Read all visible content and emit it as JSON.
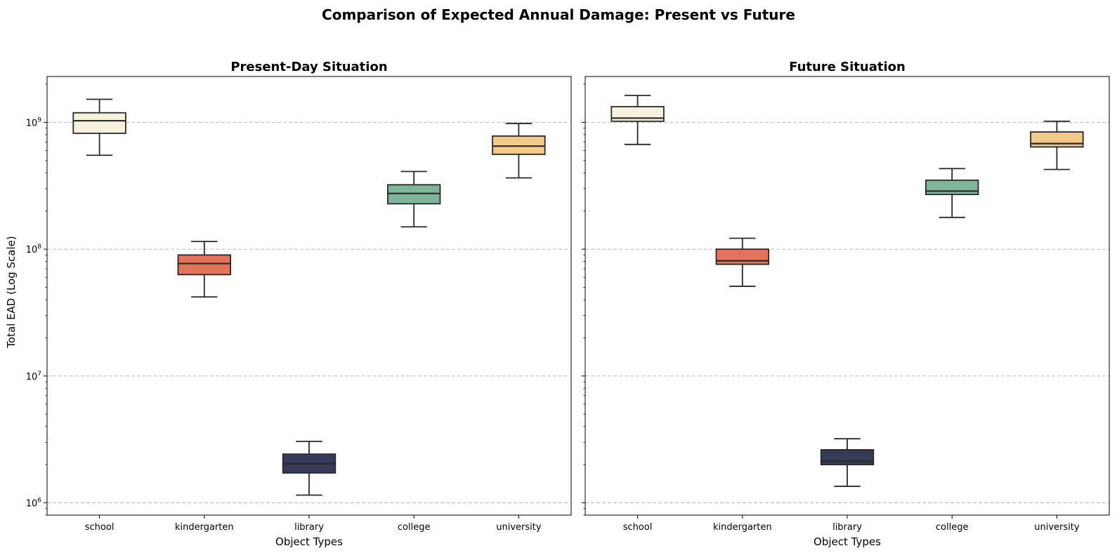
{
  "chart_data": {
    "type": "box",
    "title": "Comparison of Expected Annual Damage: Present vs Future",
    "yscale": "log",
    "ylim": [
      800000,
      2300000000
    ],
    "yticks": [
      1000000,
      10000000,
      100000000,
      1000000000
    ],
    "ytick_labels": [
      {
        "base": "10",
        "exp": "6"
      },
      {
        "base": "10",
        "exp": "7"
      },
      {
        "base": "10",
        "exp": "8"
      },
      {
        "base": "10",
        "exp": "9"
      }
    ],
    "ylabel": "Total EAD (Log Scale)",
    "xlabel": "Object Types",
    "categories": [
      "school",
      "kindergarten",
      "library",
      "college",
      "university"
    ],
    "colors": [
      "#f5f1dc",
      "#e3735a",
      "#363b59",
      "#80b59a",
      "#f2c88b"
    ],
    "grid": "y, dashed",
    "panels": [
      {
        "title": "Present-Day Situation",
        "boxes": [
          {
            "category": "school",
            "whislo": 550000000,
            "q1": 820000000,
            "med": 1030000000,
            "q3": 1190000000,
            "whishi": 1520000000
          },
          {
            "category": "kindergarten",
            "whislo": 42000000,
            "q1": 63000000,
            "med": 77000000,
            "q3": 90000000,
            "whishi": 115000000
          },
          {
            "category": "library",
            "whislo": 1150000,
            "q1": 1720000,
            "med": 2030000,
            "q3": 2420000,
            "whishi": 3050000
          },
          {
            "category": "college",
            "whislo": 150000000,
            "q1": 228000000,
            "med": 275000000,
            "q3": 322000000,
            "whishi": 410000000
          },
          {
            "category": "university",
            "whislo": 365000000,
            "q1": 560000000,
            "med": 650000000,
            "q3": 780000000,
            "whishi": 980000000
          }
        ]
      },
      {
        "title": "Future Situation",
        "boxes": [
          {
            "category": "school",
            "whislo": 670000000,
            "q1": 1020000000,
            "med": 1080000000,
            "q3": 1330000000,
            "whishi": 1630000000
          },
          {
            "category": "kindergarten",
            "whislo": 51000000,
            "q1": 76000000,
            "med": 81000000,
            "q3": 100000000,
            "whishi": 122000000
          },
          {
            "category": "library",
            "whislo": 1350000,
            "q1": 2000000,
            "med": 2130000,
            "q3": 2620000,
            "whishi": 3200000
          },
          {
            "category": "college",
            "whislo": 178000000,
            "q1": 270000000,
            "med": 287000000,
            "q3": 350000000,
            "whishi": 432000000
          },
          {
            "category": "university",
            "whislo": 425000000,
            "q1": 640000000,
            "med": 680000000,
            "q3": 840000000,
            "whishi": 1020000000
          }
        ]
      }
    ]
  }
}
